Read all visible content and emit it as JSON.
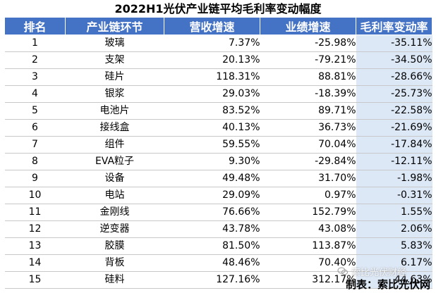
{
  "title": "2022H1光伏产业链平均毛利率变动幅度",
  "headers": {
    "rank": "排名",
    "segment": "产业链环节",
    "revenue": "营收增速",
    "profit": "业绩增速",
    "margin": "毛利率变动率"
  },
  "rows": [
    {
      "rank": "1",
      "segment": "玻璃",
      "revenue": "7.37%",
      "profit": "-25.98%",
      "margin": "-35.11%"
    },
    {
      "rank": "2",
      "segment": "支架",
      "revenue": "20.13%",
      "profit": "-79.21%",
      "margin": "-34.50%"
    },
    {
      "rank": "3",
      "segment": "硅片",
      "revenue": "118.31%",
      "profit": "88.81%",
      "margin": "-28.66%"
    },
    {
      "rank": "4",
      "segment": "银浆",
      "revenue": "29.03%",
      "profit": "-18.39%",
      "margin": "-25.73%"
    },
    {
      "rank": "5",
      "segment": "电池片",
      "revenue": "83.52%",
      "profit": "89.71%",
      "margin": "-22.58%"
    },
    {
      "rank": "6",
      "segment": "接线盒",
      "revenue": "40.13%",
      "profit": "36.73%",
      "margin": "-21.69%"
    },
    {
      "rank": "7",
      "segment": "组件",
      "revenue": "59.55%",
      "profit": "70.04%",
      "margin": "-17.84%"
    },
    {
      "rank": "8",
      "segment": "EVA粒子",
      "revenue": "9.30%",
      "profit": "-29.84%",
      "margin": "-12.11%"
    },
    {
      "rank": "9",
      "segment": "设备",
      "revenue": "49.48%",
      "profit": "31.70%",
      "margin": "-1.98%"
    },
    {
      "rank": "10",
      "segment": "电站",
      "revenue": "29.09%",
      "profit": "0.97%",
      "margin": "-0.31%"
    },
    {
      "rank": "11",
      "segment": "金刚线",
      "revenue": "76.66%",
      "profit": "152.79%",
      "margin": "1.55%"
    },
    {
      "rank": "12",
      "segment": "逆变器",
      "revenue": "43.78%",
      "profit": "43.08%",
      "margin": "2.06%"
    },
    {
      "rank": "13",
      "segment": "胶膜",
      "revenue": "81.50%",
      "profit": "113.87%",
      "margin": "5.83%"
    },
    {
      "rank": "14",
      "segment": "背板",
      "revenue": "48.46%",
      "profit": "70.40%",
      "margin": "6.17%"
    },
    {
      "rank": "15",
      "segment": "硅料",
      "revenue": "127.16%",
      "profit": "312.17%",
      "margin": "44.63%"
    }
  ],
  "footer": "制表：索比光伏网",
  "watermark": "索比光伏财经",
  "colors": {
    "header_bg": "#4472c4",
    "header_text": "#ffffff",
    "margin_col_bg": "#dde8f6",
    "row_border": "#c8c8c8"
  }
}
